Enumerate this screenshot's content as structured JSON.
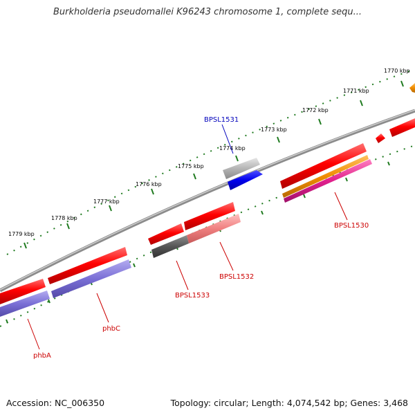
{
  "title": "Burkholderia pseudomallei K96243 chromosome 1, complete sequ...",
  "footer": {
    "accession": "Accession: NC_006350",
    "summary": "Topology: circular; Length: 4,074,542 bp; Genes: 3,468"
  },
  "scale_labels": [
    "1770 kbp",
    "1771 kbp",
    "1772 kbp",
    "1773 kbp",
    "1774 kbp",
    "1775 kbp",
    "1776 kbp",
    "1777 kbp",
    "1778 kbp",
    "1779 kbp"
  ],
  "gene_labels": [
    "BPSL1531",
    "BPSL1530",
    "BPSL1532",
    "BPSL1533",
    "phbC",
    "phbA"
  ],
  "colors": {
    "backbone": "#8c8c8c",
    "tick": "#1f7a1f",
    "gene_red": "#ff0000",
    "protein_purple": "#7a6fd6",
    "blue": "#0000ee",
    "gray": "#b5b5b5",
    "dark_gray": "#555555",
    "pink": "#f08080",
    "orange": "#f08c00",
    "magenta": "#e0208c",
    "label_red": "#cc0000",
    "label_blue": "#0000bb"
  }
}
